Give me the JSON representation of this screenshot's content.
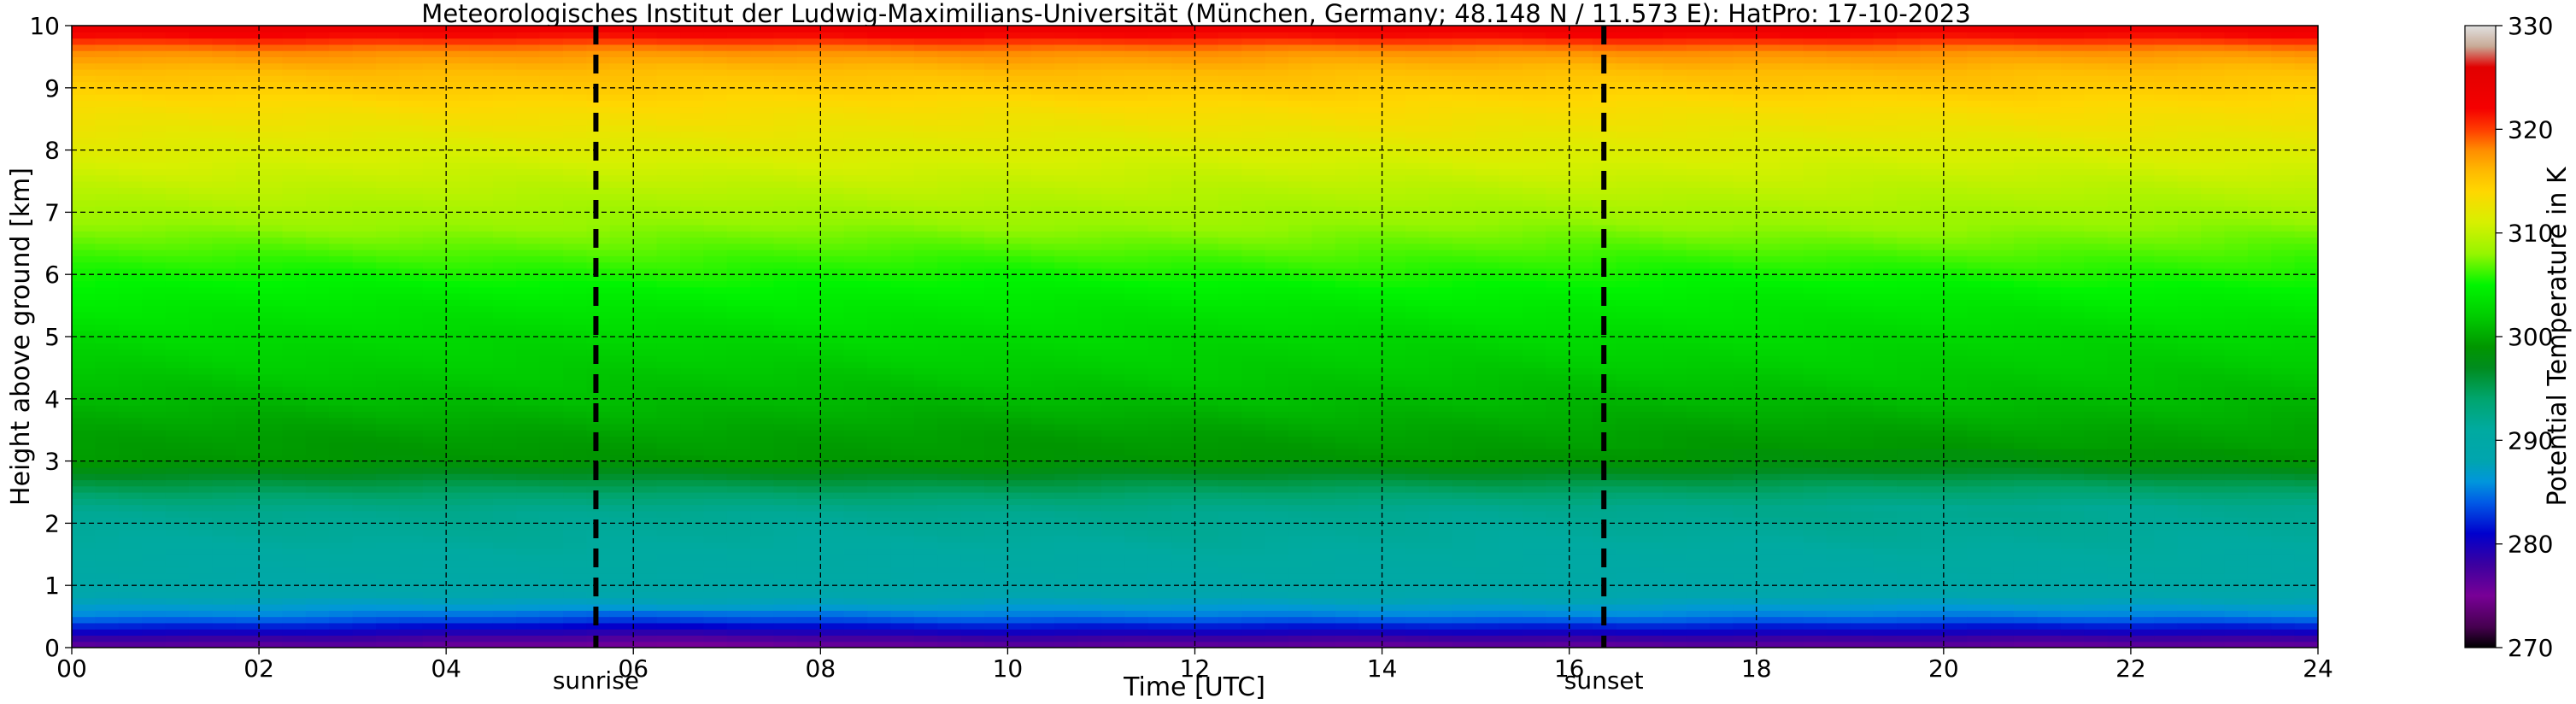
{
  "chart_data": {
    "type": "heatmap",
    "title": "Meteorologisches Institut der Ludwig-Maximilians-Universität (München, Germany; 48.148 N / 11.573 E):    HatPro: 17-10-2023",
    "xlabel": "Time [UTC]",
    "ylabel": "Height above ground [km]",
    "xlim": [
      0,
      24
    ],
    "ylim": [
      0,
      10
    ],
    "x_ticks": [
      "00",
      "02",
      "04",
      "06",
      "08",
      "10",
      "12",
      "14",
      "16",
      "18",
      "20",
      "22",
      "24"
    ],
    "y_ticks": [
      "0",
      "1",
      "2",
      "3",
      "4",
      "5",
      "6",
      "7",
      "8",
      "9",
      "10"
    ],
    "grid": true,
    "colorbar": {
      "label": "Potential Temperature in K",
      "range": [
        270,
        330
      ],
      "ticks": [
        "270",
        "280",
        "290",
        "300",
        "310",
        "320",
        "330"
      ]
    },
    "events": [
      {
        "name": "sunrise",
        "time": 5.6
      },
      {
        "name": "sunset",
        "time": 16.37
      }
    ],
    "profile": {
      "heights_km": [
        0,
        0.1,
        0.3,
        0.5,
        0.8,
        1.1,
        1.6,
        2.2,
        2.7,
        3.0,
        3.4,
        4.0,
        4.8,
        5.5,
        6.2,
        6.8,
        7.5,
        8.2,
        8.8,
        9.3,
        9.6,
        9.8,
        10.0
      ],
      "theta_K": [
        276,
        277,
        281,
        285,
        288,
        290,
        291,
        292,
        296,
        299,
        299.5,
        301,
        302.5,
        304,
        306,
        308,
        310,
        312,
        314,
        316,
        318,
        321,
        324
      ]
    }
  }
}
